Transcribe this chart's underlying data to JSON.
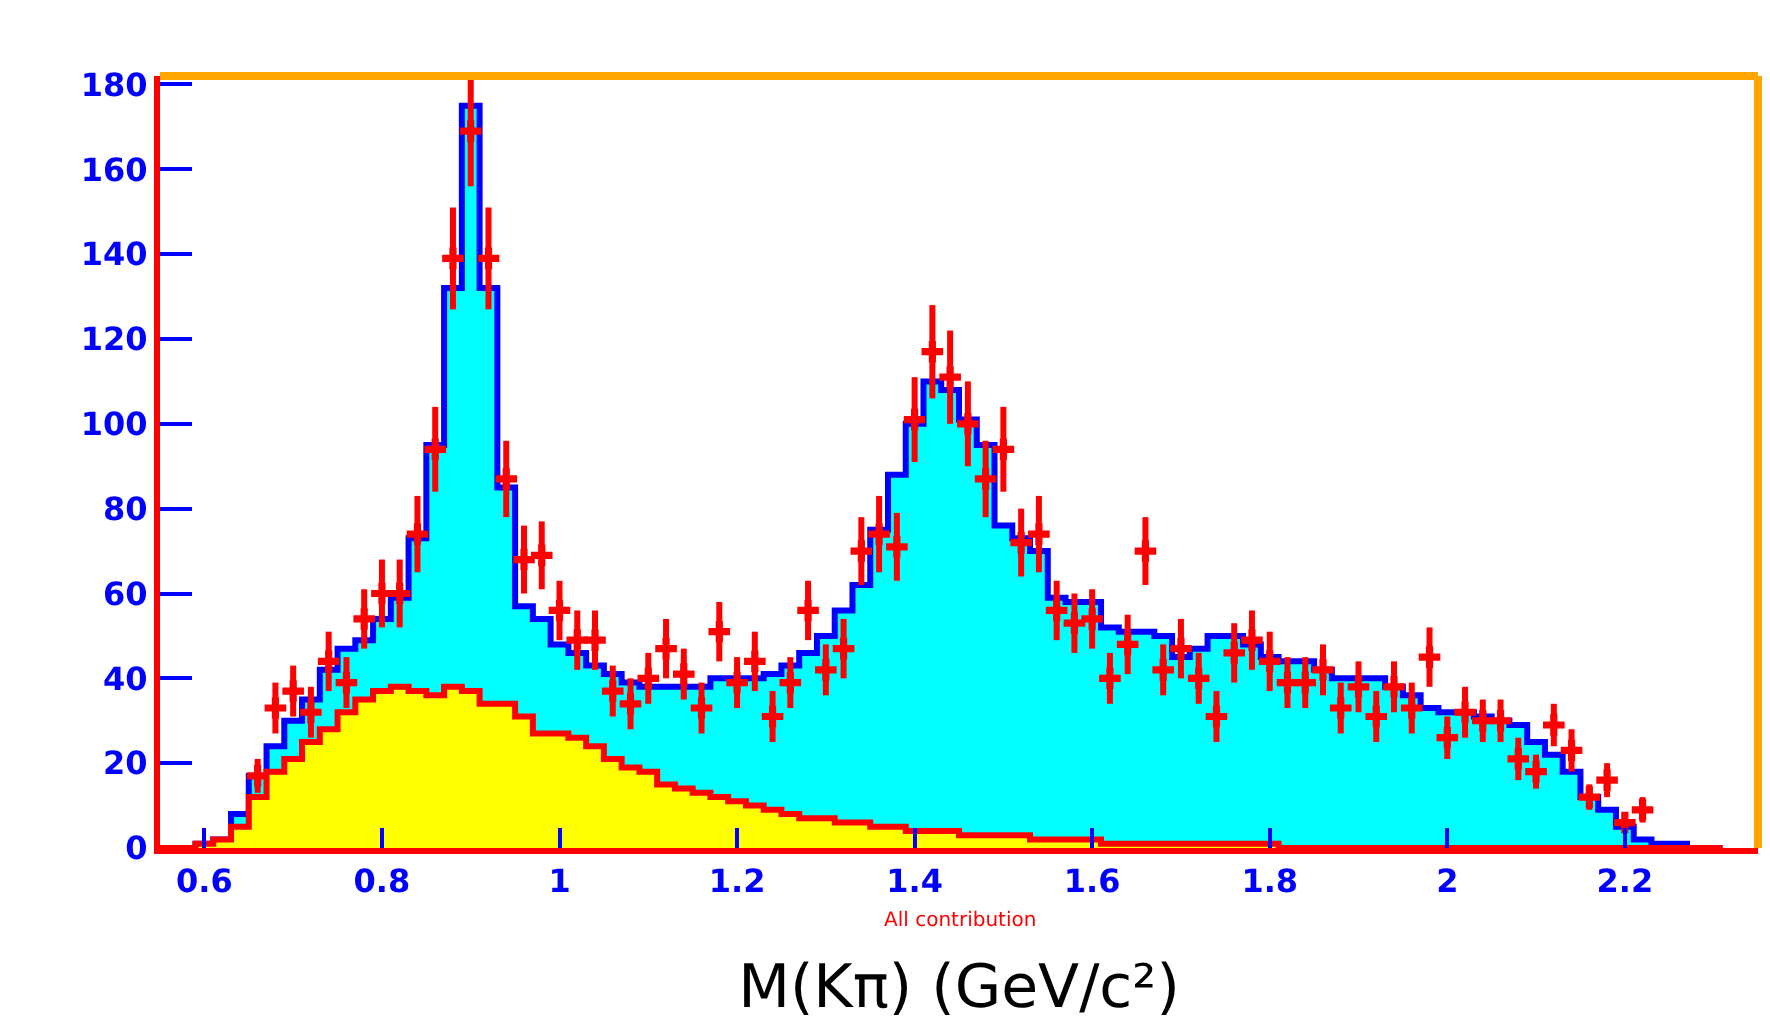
{
  "chart_data": {
    "type": "histogram",
    "xlabel": "M(Kπ) (GeV/c²)",
    "annotations": [
      "All contribution"
    ],
    "bins": [
      0.55,
      0.57,
      0.59,
      0.61,
      0.63,
      0.65,
      0.67,
      0.69,
      0.71,
      0.73,
      0.75,
      0.77,
      0.79,
      0.81,
      0.83,
      0.85,
      0.87,
      0.89,
      0.91,
      0.93,
      0.95,
      0.97,
      0.99,
      1.01,
      1.03,
      1.05,
      1.07,
      1.09,
      1.11,
      1.13,
      1.15,
      1.17,
      1.19,
      1.21,
      1.23,
      1.25,
      1.27,
      1.29,
      1.31,
      1.33,
      1.35,
      1.37,
      1.39,
      1.41,
      1.43,
      1.45,
      1.47,
      1.49,
      1.51,
      1.53,
      1.55,
      1.57,
      1.59,
      1.61,
      1.63,
      1.65,
      1.67,
      1.69,
      1.71,
      1.73,
      1.75,
      1.77,
      1.79,
      1.81,
      1.83,
      1.85,
      1.87,
      1.89,
      1.91,
      1.93,
      1.95,
      1.97,
      1.99,
      2.01,
      2.03,
      2.05,
      2.07,
      2.09,
      2.11,
      2.13,
      2.15,
      2.17,
      2.19,
      2.21,
      2.23,
      2.25,
      2.27,
      2.29,
      2.31
    ],
    "series": [
      {
        "type": "histogram",
        "color": "#00ffff",
        "values": [
          0,
          0,
          1,
          2,
          8,
          17,
          24,
          30,
          35,
          42,
          47,
          49,
          54,
          59,
          73,
          95,
          132,
          175,
          132,
          85,
          57,
          54,
          48,
          46,
          43,
          41,
          39,
          38,
          38,
          38,
          38,
          40,
          40,
          40,
          41,
          43,
          46,
          50,
          56,
          62,
          75,
          88,
          100,
          110,
          108,
          101,
          95,
          76,
          73,
          70,
          59,
          58,
          58,
          52,
          51,
          51,
          50,
          45,
          47,
          50,
          50,
          48,
          45,
          44,
          44,
          42,
          40,
          40,
          40,
          38,
          36,
          33,
          32,
          32,
          31,
          30,
          29,
          25,
          22,
          18,
          12,
          9,
          5,
          2,
          1,
          1,
          0,
          0
        ]
      },
      {
        "type": "histogram",
        "color": "#ffff00",
        "values": [
          0,
          0,
          1,
          2,
          5,
          12,
          18,
          21,
          25,
          28,
          32,
          35,
          37,
          38,
          37,
          36,
          38,
          37,
          34,
          34,
          31,
          27,
          27,
          26,
          24,
          21,
          19,
          18,
          15,
          14,
          13,
          12,
          11,
          10,
          9,
          8,
          7,
          7,
          6,
          6,
          5,
          5,
          4,
          4,
          4,
          3,
          3,
          3,
          3,
          2,
          2,
          2,
          2,
          1,
          1,
          1,
          1,
          1,
          1,
          1,
          1,
          1,
          1,
          0,
          0,
          0,
          0,
          0,
          0,
          0,
          0,
          0,
          0,
          0,
          0,
          0,
          0,
          0,
          0,
          0,
          0,
          0,
          0,
          0,
          0,
          0,
          0,
          0
        ]
      },
      {
        "type": "scatter",
        "color": "#ff0000",
        "marker": "cross",
        "x": [
          0.66,
          0.68,
          0.7,
          0.72,
          0.74,
          0.76,
          0.78,
          0.8,
          0.82,
          0.84,
          0.86,
          0.88,
          0.9,
          0.92,
          0.94,
          0.96,
          0.98,
          1,
          1.02,
          1.04,
          1.06,
          1.08,
          1.1,
          1.12,
          1.14,
          1.16,
          1.18,
          1.2,
          1.22,
          1.24,
          1.26,
          1.28,
          1.3,
          1.32,
          1.34,
          1.36,
          1.38,
          1.4,
          1.42,
          1.44,
          1.46,
          1.48,
          1.5,
          1.52,
          1.54,
          1.56,
          1.58,
          1.6,
          1.62,
          1.64,
          1.66,
          1.68,
          1.7,
          1.72,
          1.74,
          1.76,
          1.78,
          1.8,
          1.82,
          1.84,
          1.86,
          1.88,
          1.9,
          1.92,
          1.94,
          1.96,
          1.98,
          2,
          2.02,
          2.04,
          2.06,
          2.08,
          2.1,
          2.12,
          2.14,
          2.16,
          2.18,
          2.2,
          2.22
        ],
        "values": [
          17,
          33,
          37,
          32,
          44,
          39,
          54,
          60,
          60,
          74,
          94,
          139,
          169,
          139,
          87,
          68,
          69,
          56,
          49,
          49,
          37,
          34,
          40,
          47,
          41,
          33,
          51,
          39,
          44,
          31,
          39,
          56,
          42,
          47,
          70,
          74,
          71,
          101,
          117,
          111,
          100,
          87,
          94,
          72,
          74,
          56,
          53,
          54,
          40,
          48,
          70,
          42,
          47,
          40,
          31,
          46,
          49,
          44,
          39,
          39,
          42,
          33,
          38,
          31,
          38,
          33,
          45,
          26,
          32,
          30,
          30,
          21,
          18,
          29,
          23,
          12,
          16,
          6,
          9
        ],
        "errors": [
          4,
          6,
          6,
          6,
          7,
          6,
          7,
          8,
          8,
          9,
          10,
          12,
          13,
          12,
          9,
          8,
          8,
          7,
          7,
          7,
          6,
          6,
          6,
          7,
          6,
          6,
          7,
          6,
          7,
          6,
          6,
          7,
          6,
          7,
          8,
          9,
          8,
          10,
          11,
          11,
          10,
          9,
          10,
          8,
          9,
          7,
          7,
          7,
          6,
          7,
          8,
          6,
          7,
          6,
          6,
          7,
          7,
          7,
          6,
          6,
          6,
          6,
          6,
          6,
          6,
          6,
          7,
          5,
          6,
          5,
          5,
          5,
          4,
          5,
          5,
          3,
          4,
          2,
          3
        ]
      }
    ],
    "xlim": [
      0.55,
      2.35
    ],
    "xticks": [
      0.6,
      0.8,
      1,
      1.2,
      1.4,
      1.6,
      1.8,
      2,
      2.2
    ],
    "ylim": [
      0,
      182
    ],
    "yticks": [
      0,
      20,
      40,
      60,
      80,
      100,
      120,
      140,
      160,
      180
    ]
  }
}
